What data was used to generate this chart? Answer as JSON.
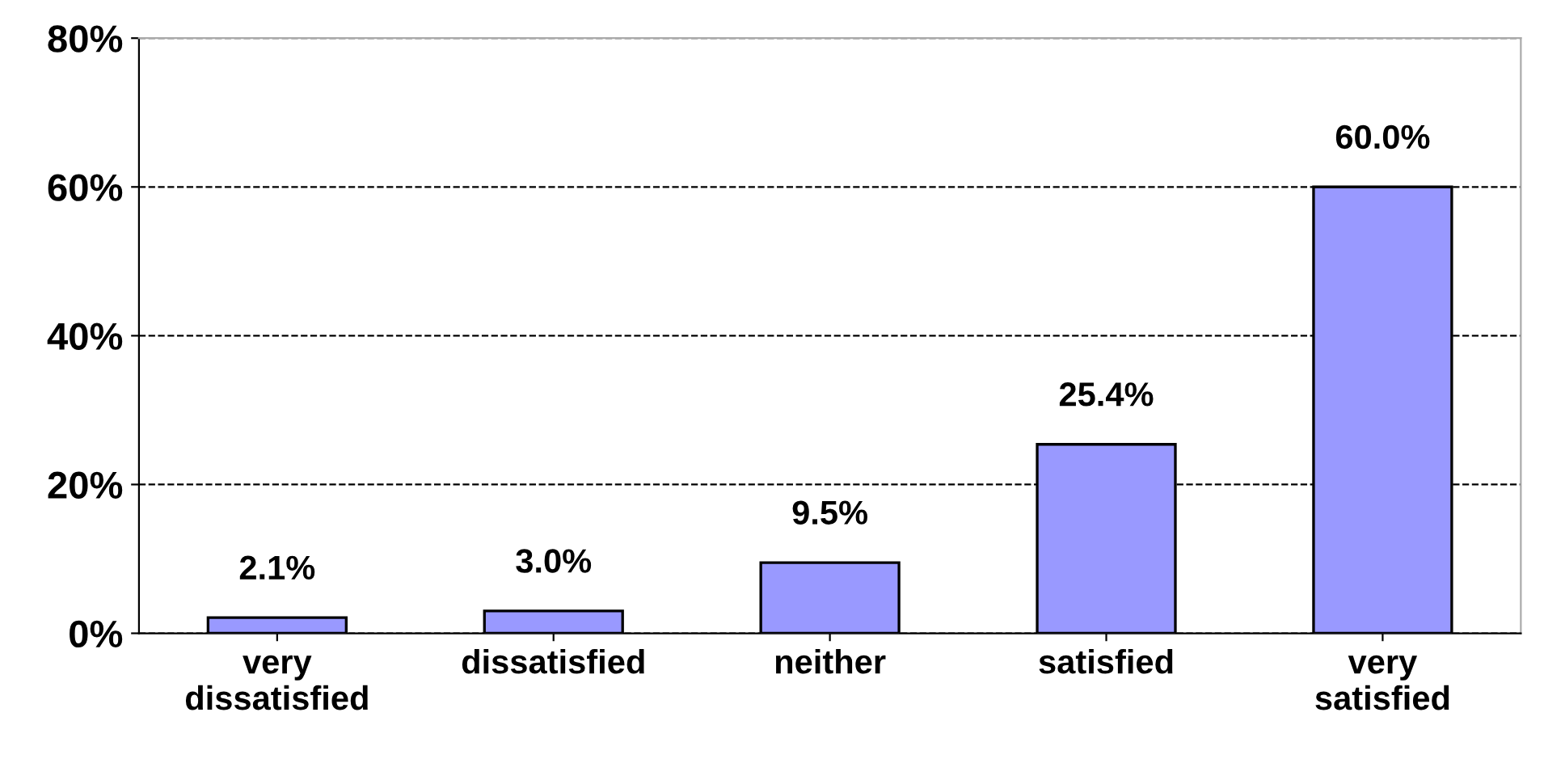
{
  "chart_data": {
    "type": "bar",
    "categories": [
      "very\ndissatisfied",
      "dissatisfied",
      "neither",
      "satisfied",
      "very\nsatisfied"
    ],
    "values": [
      2.1,
      3.0,
      9.5,
      25.4,
      60.0
    ],
    "value_labels": [
      "2.1%",
      "3.0%",
      "9.5%",
      "25.4%",
      "60.0%"
    ],
    "color": "#9999ff",
    "ylim": [
      0,
      80
    ],
    "yticks": [
      {
        "value": 0,
        "label": "0%"
      },
      {
        "value": 20,
        "label": "20%"
      },
      {
        "value": 40,
        "label": "40%"
      },
      {
        "value": 60,
        "label": "60%"
      },
      {
        "value": 80,
        "label": "80%"
      }
    ],
    "grid": "y"
  }
}
